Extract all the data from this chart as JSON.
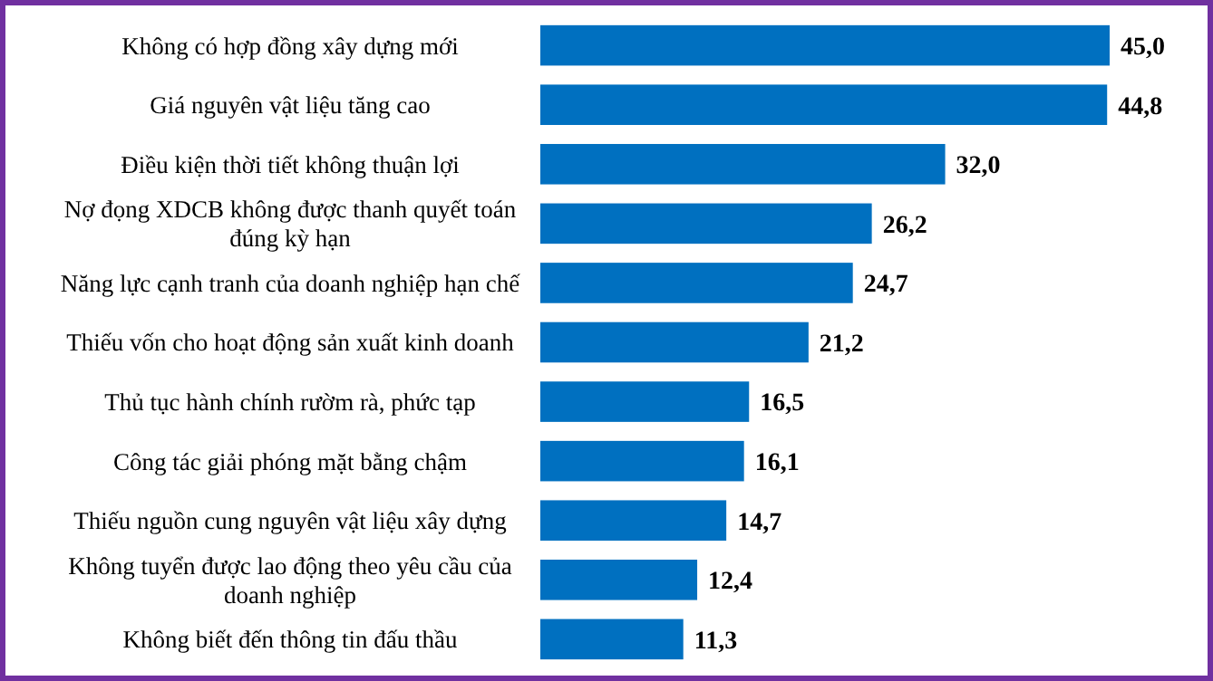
{
  "chart_data": {
    "type": "bar",
    "orientation": "horizontal",
    "categories": [
      "Không có hợp đồng xây dựng mới",
      "Giá nguyên vật liệu tăng cao",
      "Điều kiện thời tiết không thuận lợi",
      "Nợ đọng XDCB không được thanh quyết toán đúng kỳ hạn",
      "Năng lực cạnh tranh của doanh nghiệp hạn chế",
      "Thiếu vốn cho hoạt động sản xuất kinh doanh",
      "Thủ tục hành chính rườm rà, phức tạp",
      "Công tác giải phóng mặt bằng chậm",
      "Thiếu nguồn cung nguyên vật liệu xây dựng",
      "Không tuyển được lao động theo yêu cầu của doanh nghiệp",
      "Không biết đến thông tin đấu thầu"
    ],
    "values": [
      45.0,
      44.8,
      32.0,
      26.2,
      24.7,
      21.2,
      16.5,
      16.1,
      14.7,
      12.4,
      11.3
    ],
    "value_labels": [
      "45,0",
      "44,8",
      "32,0",
      "26,2",
      "24,7",
      "21,2",
      "16,5",
      "16,1",
      "14,7",
      "12,4",
      "11,3"
    ],
    "color": "#0070c0"
  }
}
